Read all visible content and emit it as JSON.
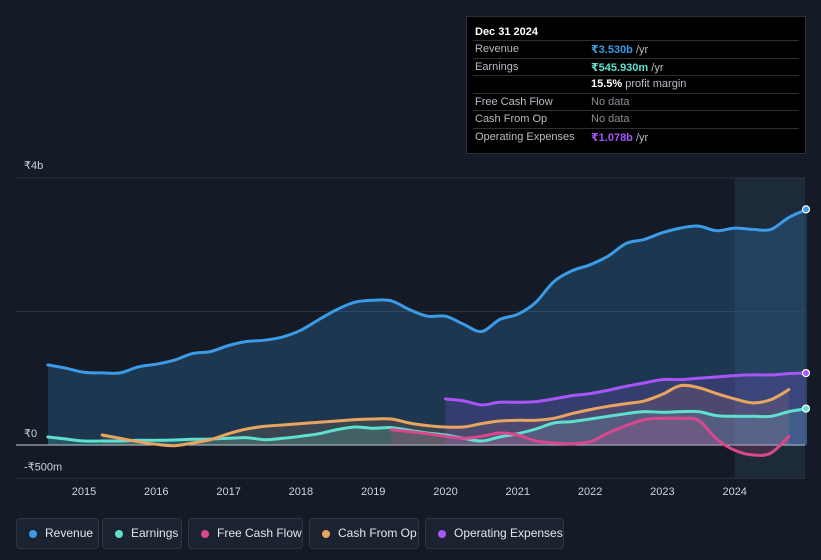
{
  "tooltip": {
    "date": "Dec 31 2024",
    "rows": [
      {
        "label": "Revenue",
        "value": "₹3.530b",
        "unit": " /yr",
        "color": "#3b9be6"
      },
      {
        "label": "Earnings",
        "value": "₹545.930m",
        "unit": " /yr",
        "color": "#5fe0cf"
      },
      {
        "label": "",
        "value": "15.5%",
        "unit": " profit margin",
        "color": "#ffffff"
      },
      {
        "label": "Free Cash Flow",
        "value": "No data",
        "unit": "",
        "color": "#8a8f97"
      },
      {
        "label": "Cash From Op",
        "value": "No data",
        "unit": "",
        "color": "#8a8f97"
      },
      {
        "label": "Operating Expenses",
        "value": "₹1.078b",
        "unit": " /yr",
        "color": "#a855f7"
      }
    ]
  },
  "legend": [
    {
      "label": "Revenue",
      "color": "#3b9be6"
    },
    {
      "label": "Earnings",
      "color": "#5fe0cf"
    },
    {
      "label": "Free Cash Flow",
      "color": "#d9478d"
    },
    {
      "label": "Cash From Op",
      "color": "#e8a55f"
    },
    {
      "label": "Operating Expenses",
      "color": "#a855f7"
    }
  ],
  "chart_data": {
    "type": "area",
    "title": "",
    "xlabel": "",
    "ylabel": "",
    "y_tick_labels": [
      "₹4b",
      "₹0",
      "-₹500m"
    ],
    "y_ticks": [
      4000,
      0,
      -500
    ],
    "ylim": [
      -500,
      4000
    ],
    "xlim": [
      2014.35,
      2025.0
    ],
    "x_tick_labels": [
      "2015",
      "2016",
      "2017",
      "2018",
      "2019",
      "2020",
      "2021",
      "2022",
      "2023",
      "2024"
    ],
    "x_ticks": [
      2015,
      2016,
      2017,
      2018,
      2019,
      2020,
      2021,
      2022,
      2023,
      2024
    ],
    "highlight_start": 2024.0,
    "series": [
      {
        "name": "Revenue",
        "color": "#3b9be6",
        "x": [
          2014.5,
          2014.75,
          2015.0,
          2015.25,
          2015.5,
          2015.75,
          2016.0,
          2016.25,
          2016.5,
          2016.75,
          2017.0,
          2017.25,
          2017.5,
          2017.75,
          2018.0,
          2018.25,
          2018.5,
          2018.75,
          2019.0,
          2019.25,
          2019.5,
          2019.75,
          2020.0,
          2020.25,
          2020.5,
          2020.75,
          2021.0,
          2021.25,
          2021.5,
          2021.75,
          2022.0,
          2022.25,
          2022.5,
          2022.75,
          2023.0,
          2023.25,
          2023.5,
          2023.75,
          2024.0,
          2024.25,
          2024.5,
          2024.75,
          2025.0
        ],
        "y": [
          1200,
          1150,
          1090,
          1080,
          1080,
          1170,
          1210,
          1270,
          1370,
          1400,
          1490,
          1550,
          1570,
          1620,
          1720,
          1880,
          2030,
          2140,
          2170,
          2160,
          2030,
          1930,
          1930,
          1810,
          1700,
          1880,
          1960,
          2140,
          2450,
          2610,
          2700,
          2830,
          3020,
          3080,
          3180,
          3250,
          3280,
          3210,
          3250,
          3230,
          3230,
          3410,
          3530
        ]
      },
      {
        "name": "Earnings",
        "color": "#5fe0cf",
        "x": [
          2014.5,
          2014.75,
          2015.0,
          2015.25,
          2015.5,
          2015.75,
          2016.0,
          2016.25,
          2016.5,
          2016.75,
          2017.0,
          2017.25,
          2017.5,
          2017.75,
          2018.0,
          2018.25,
          2018.5,
          2018.75,
          2019.0,
          2019.25,
          2019.5,
          2019.75,
          2020.0,
          2020.25,
          2020.5,
          2020.75,
          2021.0,
          2021.25,
          2021.5,
          2021.75,
          2022.0,
          2022.25,
          2022.5,
          2022.75,
          2023.0,
          2023.25,
          2023.5,
          2023.75,
          2024.0,
          2024.25,
          2024.5,
          2024.75,
          2025.0
        ],
        "y": [
          120,
          90,
          60,
          60,
          60,
          70,
          70,
          75,
          85,
          90,
          100,
          110,
          80,
          100,
          130,
          170,
          230,
          270,
          250,
          260,
          220,
          180,
          150,
          100,
          60,
          120,
          170,
          240,
          330,
          350,
          390,
          430,
          470,
          500,
          490,
          500,
          500,
          440,
          430,
          430,
          430,
          500,
          546
        ]
      },
      {
        "name": "Free Cash Flow",
        "color": "#d9478d",
        "x": [
          2019.25,
          2019.5,
          2019.75,
          2020.0,
          2020.25,
          2020.5,
          2020.75,
          2021.0,
          2021.25,
          2021.5,
          2021.75,
          2022.0,
          2022.25,
          2022.5,
          2022.75,
          2023.0,
          2023.25,
          2023.5,
          2023.75,
          2024.0,
          2024.25,
          2024.5,
          2024.75
        ],
        "y": [
          230,
          200,
          170,
          130,
          100,
          130,
          180,
          150,
          60,
          30,
          20,
          50,
          180,
          290,
          380,
          400,
          400,
          370,
          90,
          -80,
          -150,
          -120,
          130
        ]
      },
      {
        "name": "Cash From Op",
        "color": "#e8a55f",
        "x": [
          2015.25,
          2015.5,
          2015.75,
          2016.0,
          2016.25,
          2016.5,
          2016.75,
          2017.0,
          2017.25,
          2017.5,
          2017.75,
          2018.0,
          2018.25,
          2018.5,
          2018.75,
          2019.0,
          2019.25,
          2019.5,
          2019.75,
          2020.0,
          2020.25,
          2020.5,
          2020.75,
          2021.0,
          2021.25,
          2021.5,
          2021.75,
          2022.0,
          2022.25,
          2022.5,
          2022.75,
          2023.0,
          2023.25,
          2023.5,
          2023.75,
          2024.0,
          2024.25,
          2024.5,
          2024.75
        ],
        "y": [
          150,
          100,
          50,
          10,
          -10,
          30,
          80,
          170,
          240,
          280,
          300,
          320,
          340,
          360,
          380,
          390,
          390,
          330,
          290,
          270,
          270,
          320,
          360,
          370,
          370,
          400,
          470,
          530,
          580,
          620,
          660,
          760,
          890,
          860,
          770,
          690,
          630,
          680,
          830
        ]
      },
      {
        "name": "Operating Expenses",
        "color": "#a855f7",
        "x": [
          2020.0,
          2020.25,
          2020.5,
          2020.75,
          2021.0,
          2021.25,
          2021.5,
          2021.75,
          2022.0,
          2022.25,
          2022.5,
          2022.75,
          2023.0,
          2023.25,
          2023.5,
          2023.75,
          2024.0,
          2024.25,
          2024.5,
          2024.75,
          2025.0
        ],
        "y": [
          690,
          660,
          600,
          640,
          640,
          650,
          690,
          740,
          770,
          820,
          880,
          930,
          980,
          980,
          1000,
          1020,
          1040,
          1050,
          1050,
          1070,
          1078
        ]
      }
    ]
  }
}
